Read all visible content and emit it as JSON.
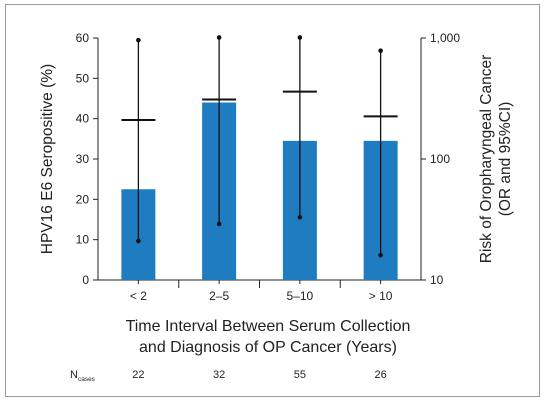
{
  "chart_data": {
    "type": "bar",
    "categories": [
      "< 2",
      "2–5",
      "5–10",
      "> 10"
    ],
    "series": [
      {
        "name": "HPV16 E6 Seropositive (%)",
        "values": [
          22.5,
          44,
          34.5,
          34.5
        ],
        "axis": "left"
      }
    ],
    "odds_ratio": {
      "or": [
        210,
        310,
        360,
        225
      ],
      "ci_lower": [
        21,
        29,
        33,
        16
      ],
      "ci_upper": [
        960,
        1010,
        1010,
        785
      ],
      "axis": "right",
      "scale": "log"
    },
    "ylabel_left": "HPV16 E6 Seropositive (%)",
    "ylabel_right_line1": "Risk of Oropharyngeal Cancer",
    "ylabel_right_line2": "(OR and 95%CI)",
    "xlabel_line1": "Time Interval Between Serum Collection",
    "xlabel_line2": "and Diagnosis of OP Cancer (Years)",
    "ylim_left": [
      0,
      60
    ],
    "yticks_left": [
      "0",
      "10",
      "20",
      "30",
      "40",
      "50",
      "60"
    ],
    "ylim_right": [
      10,
      1000
    ],
    "yticks_right": [
      "10",
      "100",
      "1,000"
    ],
    "ncases_label": "N",
    "ncases_sub": "cases",
    "ncases": [
      "22",
      "32",
      "55",
      "26"
    ],
    "bar_color": "#1f7cc1",
    "grid": false
  }
}
